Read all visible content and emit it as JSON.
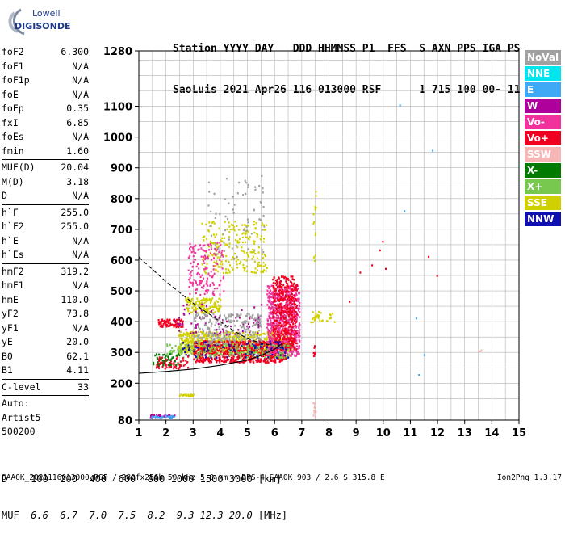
{
  "logo": {
    "line1": "Lowell",
    "line2": "DIGISONDE"
  },
  "header": {
    "row1": "Station YYYY DAY   DDD HHMMSS P1  FFS  S AXN PPS IGA PS",
    "row2": "SaoLuis 2021 Apr26 116 013000 RSF      1 715 100 00- 11"
  },
  "params": {
    "group1": [
      {
        "name": "foF2",
        "value": "6.300"
      },
      {
        "name": "foF1",
        "value": "N/A"
      },
      {
        "name": "foF1p",
        "value": "N/A"
      },
      {
        "name": "foE",
        "value": "N/A"
      },
      {
        "name": "foEp",
        "value": "0.35"
      },
      {
        "name": "fxI",
        "value": "6.85"
      },
      {
        "name": "foEs",
        "value": "N/A"
      },
      {
        "name": "fmin",
        "value": "1.60"
      }
    ],
    "group2": [
      {
        "name": "MUF(D)",
        "value": "20.04"
      },
      {
        "name": "M(D)",
        "value": "3.18"
      },
      {
        "name": "D",
        "value": "N/A"
      }
    ],
    "group3": [
      {
        "name": "h`F",
        "value": "255.0"
      },
      {
        "name": "h`F2",
        "value": "255.0"
      },
      {
        "name": "h`E",
        "value": "N/A"
      },
      {
        "name": "h`Es",
        "value": "N/A"
      }
    ],
    "group4": [
      {
        "name": "hmF2",
        "value": "319.2"
      },
      {
        "name": "hmF1",
        "value": "N/A"
      },
      {
        "name": "hmE",
        "value": "110.0"
      },
      {
        "name": "yF2",
        "value": "73.8"
      },
      {
        "name": "yF1",
        "value": "N/A"
      },
      {
        "name": "yE",
        "value": "20.0"
      },
      {
        "name": "B0",
        "value": "62.1"
      },
      {
        "name": "B1",
        "value": "4.11"
      }
    ],
    "clevel": {
      "name": "C-level",
      "value": "33"
    },
    "auto": [
      "Auto:",
      "Artist5",
      "500200"
    ]
  },
  "legend": [
    {
      "label": "NoVal",
      "color": "#a0a0a0"
    },
    {
      "label": "NNE",
      "color": "#00e5ee"
    },
    {
      "label": "E",
      "color": "#3fa9f5"
    },
    {
      "label": "W",
      "color": "#b0009c"
    },
    {
      "label": "Vo-",
      "color": "#f2329c"
    },
    {
      "label": "Vo+",
      "color": "#f00020"
    },
    {
      "label": "SSW",
      "color": "#f6b6b6"
    },
    {
      "label": "X-",
      "color": "#007a00"
    },
    {
      "label": "X+",
      "color": "#78c850"
    },
    {
      "label": "SSE",
      "color": "#d0d000"
    },
    {
      "label": "NNW",
      "color": "#1010b0"
    }
  ],
  "footer": {
    "d_label": "D  ",
    "d_values": "  100  200  400  600  800 1000 1500 3000 [km]",
    "muf_label": "MUF",
    "muf_values": "  6.6  6.7  7.0  7.5  8.2  9.3 12.3 20.0",
    "muf_unit": " [MHz]"
  },
  "status": "SAA0K_2021116013000.RSF / 280fx256h 50 kHz 5.0 km / DPS-4 SAA0K 903 / 2.6 S 315.8 E",
  "version": "Ion2Png 1.3.17",
  "chart_data": {
    "type": "scatter",
    "x_range": [
      1,
      15
    ],
    "y_range": [
      80,
      1280
    ],
    "x_ticks": [
      1,
      2,
      3,
      4,
      5,
      6,
      7,
      8,
      9,
      10,
      11,
      12,
      13,
      14,
      15
    ],
    "y_ticks": [
      80,
      200,
      300,
      400,
      500,
      600,
      700,
      800,
      900,
      1000,
      1100,
      1280
    ],
    "grid": true,
    "grid_step_x": 0.5,
    "grid_step_y": 50,
    "clusters": [
      {
        "color": "#d0d000",
        "x": [
          2.4,
          6.6
        ],
        "y": [
          300,
          370
        ],
        "count": 700
      },
      {
        "color": "#f00020",
        "x": [
          3.0,
          6.4
        ],
        "y": [
          270,
          340
        ],
        "count": 800
      },
      {
        "color": "#f2329c",
        "x": [
          5.7,
          6.9
        ],
        "y": [
          290,
          520
        ],
        "count": 700
      },
      {
        "color": "#f00020",
        "x": [
          5.9,
          6.8
        ],
        "y": [
          310,
          550
        ],
        "count": 400
      },
      {
        "color": "#d0d000",
        "x": [
          3.3,
          5.7
        ],
        "y": [
          560,
          730
        ],
        "count": 220
      },
      {
        "color": "#f2329c",
        "x": [
          2.8,
          4.1
        ],
        "y": [
          490,
          660
        ],
        "count": 150
      },
      {
        "color": "#d0d000",
        "x": [
          2.7,
          4.0
        ],
        "y": [
          430,
          480
        ],
        "count": 140
      },
      {
        "color": "#78c850",
        "x": [
          2.0,
          6.5
        ],
        "y": [
          285,
          330
        ],
        "count": 220
      },
      {
        "color": "#1010b0",
        "x": [
          2.5,
          6.5
        ],
        "y": [
          285,
          340
        ],
        "count": 90
      },
      {
        "color": "#f00020",
        "x": [
          1.7,
          2.6
        ],
        "y": [
          385,
          410
        ],
        "count": 90
      },
      {
        "color": "#b0009c",
        "x": [
          2.3,
          5.5
        ],
        "y": [
          360,
          460
        ],
        "count": 80
      },
      {
        "color": "#a0a0a0",
        "x": [
          3.0,
          5.5
        ],
        "y": [
          330,
          430
        ],
        "count": 260
      },
      {
        "color": "#a0a0a0",
        "x": [
          3.5,
          5.6
        ],
        "y": [
          600,
          880
        ],
        "count": 70
      },
      {
        "color": "#b0009c",
        "x": [
          1.4,
          2.3
        ],
        "y": [
          90,
          100
        ],
        "count": 40
      },
      {
        "color": "#3fa9f5",
        "x": [
          1.4,
          2.3
        ],
        "y": [
          88,
          98
        ],
        "count": 30
      },
      {
        "color": "#d0d000",
        "x": [
          2.4,
          3.1
        ],
        "y": [
          160,
          166
        ],
        "count": 25
      },
      {
        "color": "#f00020",
        "x": [
          1.6,
          2.8
        ],
        "y": [
          250,
          290
        ],
        "count": 80
      },
      {
        "color": "#007a00",
        "x": [
          1.5,
          2.5
        ],
        "y": [
          260,
          300
        ],
        "count": 40
      },
      {
        "color": "#d0d000",
        "x": [
          7.4,
          7.5
        ],
        "y": [
          600,
          850
        ],
        "count": 14
      },
      {
        "color": "#f00020",
        "x": [
          7.4,
          7.5
        ],
        "y": [
          290,
          330
        ],
        "count": 10
      },
      {
        "color": "#f6b6b6",
        "x": [
          7.4,
          7.5
        ],
        "y": [
          85,
          140
        ],
        "count": 10
      },
      {
        "color": "#d0d000",
        "x": [
          7.3,
          8.2
        ],
        "y": [
          400,
          440
        ],
        "count": 30
      },
      {
        "color": "#3fa9f5",
        "x": [
          10.2,
          12.2
        ],
        "y": [
          160,
          1110
        ],
        "count": 6
      },
      {
        "color": "#f00020",
        "x": [
          8.7,
          12.1
        ],
        "y": [
          450,
          710
        ],
        "count": 8
      },
      {
        "color": "#f6b6b6",
        "x": [
          13.5,
          13.6
        ],
        "y": [
          305,
          312
        ],
        "count": 3
      }
    ],
    "curves": [
      {
        "style": "dashed",
        "points": [
          [
            1.0,
            610
          ],
          [
            1.5,
            570
          ],
          [
            2.0,
            530
          ],
          [
            2.5,
            495
          ],
          [
            3.0,
            460
          ],
          [
            3.5,
            430
          ],
          [
            4.0,
            400
          ],
          [
            4.5,
            370
          ],
          [
            5.0,
            345
          ],
          [
            5.5,
            330
          ],
          [
            5.8,
            325
          ]
        ]
      },
      {
        "style": "solid",
        "points": [
          [
            1.0,
            232
          ],
          [
            2.0,
            238
          ],
          [
            3.0,
            246
          ],
          [
            4.0,
            258
          ],
          [
            5.0,
            275
          ],
          [
            5.5,
            290
          ],
          [
            6.0,
            310
          ],
          [
            6.3,
            330
          ]
        ]
      }
    ]
  }
}
